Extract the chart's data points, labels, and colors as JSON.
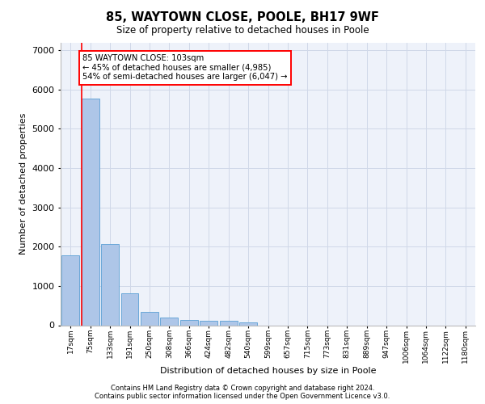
{
  "title_line1": "85, WAYTOWN CLOSE, POOLE, BH17 9WF",
  "title_line2": "Size of property relative to detached houses in Poole",
  "xlabel": "Distribution of detached houses by size in Poole",
  "ylabel": "Number of detached properties",
  "footer_line1": "Contains HM Land Registry data © Crown copyright and database right 2024.",
  "footer_line2": "Contains public sector information licensed under the Open Government Licence v3.0.",
  "bin_labels": [
    "17sqm",
    "75sqm",
    "133sqm",
    "191sqm",
    "250sqm",
    "308sqm",
    "366sqm",
    "424sqm",
    "482sqm",
    "540sqm",
    "599sqm",
    "657sqm",
    "715sqm",
    "773sqm",
    "831sqm",
    "889sqm",
    "947sqm",
    "1006sqm",
    "1064sqm",
    "1122sqm",
    "1180sqm"
  ],
  "bar_heights": [
    1780,
    5780,
    2060,
    820,
    340,
    195,
    125,
    110,
    105,
    70,
    0,
    0,
    0,
    0,
    0,
    0,
    0,
    0,
    0,
    0,
    0
  ],
  "bar_color": "#aec6e8",
  "bar_edge_color": "#5a9fd4",
  "property_label": "85 WAYTOWN CLOSE: 103sqm",
  "pct_smaller": 45,
  "n_smaller": 4985,
  "pct_larger_semi": 54,
  "n_larger_semi": 6047,
  "vline_color": "red",
  "ylim": [
    0,
    7200
  ],
  "yticks": [
    0,
    1000,
    2000,
    3000,
    4000,
    5000,
    6000,
    7000
  ],
  "grid_color": "#d0d8e8",
  "background_color": "#eef2fa",
  "figsize": [
    6.0,
    5.0
  ],
  "dpi": 100
}
